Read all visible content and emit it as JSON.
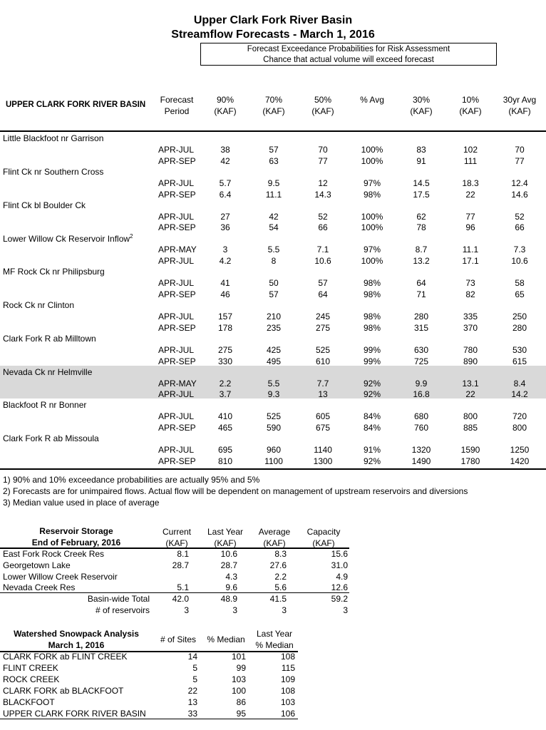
{
  "title": {
    "line1": "Upper Clark Fork River Basin",
    "line2": "Streamflow Forecasts - March 1, 2016"
  },
  "prob_box": {
    "line1": "Forecast Exceedance Probabilities for Risk Assessment",
    "line2": "Chance that actual volume will exceed forecast"
  },
  "forecast_table": {
    "basin_header": "UPPER CLARK FORK RIVER BASIN",
    "columns": [
      {
        "l1": "Forecast",
        "l2": "Period"
      },
      {
        "l1": "90%",
        "l2": "(KAF)"
      },
      {
        "l1": "70%",
        "l2": "(KAF)"
      },
      {
        "l1": "50%",
        "l2": "(KAF)"
      },
      {
        "l1": "% Avg",
        "l2": ""
      },
      {
        "l1": "30%",
        "l2": "(KAF)"
      },
      {
        "l1": "10%",
        "l2": "(KAF)"
      },
      {
        "l1": "30yr Avg",
        "l2": "(KAF)"
      }
    ],
    "sites": [
      {
        "name": "Little Blackfoot nr Garrison",
        "sup": "",
        "shaded": false,
        "rows": [
          [
            "APR-JUL",
            "38",
            "57",
            "70",
            "100%",
            "83",
            "102",
            "70"
          ],
          [
            "APR-SEP",
            "42",
            "63",
            "77",
            "100%",
            "91",
            "111",
            "77"
          ]
        ]
      },
      {
        "name": "Flint Ck nr Southern Cross",
        "sup": "",
        "shaded": false,
        "rows": [
          [
            "APR-JUL",
            "5.7",
            "9.5",
            "12",
            "97%",
            "14.5",
            "18.3",
            "12.4"
          ],
          [
            "APR-SEP",
            "6.4",
            "11.1",
            "14.3",
            "98%",
            "17.5",
            "22",
            "14.6"
          ]
        ]
      },
      {
        "name": "Flint Ck bl Boulder Ck",
        "sup": "",
        "shaded": false,
        "rows": [
          [
            "APR-JUL",
            "27",
            "42",
            "52",
            "100%",
            "62",
            "77",
            "52"
          ],
          [
            "APR-SEP",
            "36",
            "54",
            "66",
            "100%",
            "78",
            "96",
            "66"
          ]
        ]
      },
      {
        "name": "Lower Willow Ck Reservoir Inflow",
        "sup": "2",
        "shaded": false,
        "rows": [
          [
            "APR-MAY",
            "3",
            "5.5",
            "7.1",
            "97%",
            "8.7",
            "11.1",
            "7.3"
          ],
          [
            "APR-JUL",
            "4.2",
            "8",
            "10.6",
            "100%",
            "13.2",
            "17.1",
            "10.6"
          ]
        ]
      },
      {
        "name": "MF Rock Ck nr Philipsburg",
        "sup": "",
        "shaded": false,
        "rows": [
          [
            "APR-JUL",
            "41",
            "50",
            "57",
            "98%",
            "64",
            "73",
            "58"
          ],
          [
            "APR-SEP",
            "46",
            "57",
            "64",
            "98%",
            "71",
            "82",
            "65"
          ]
        ]
      },
      {
        "name": "Rock Ck nr Clinton",
        "sup": "",
        "shaded": false,
        "rows": [
          [
            "APR-JUL",
            "157",
            "210",
            "245",
            "98%",
            "280",
            "335",
            "250"
          ],
          [
            "APR-SEP",
            "178",
            "235",
            "275",
            "98%",
            "315",
            "370",
            "280"
          ]
        ]
      },
      {
        "name": "Clark Fork R ab Milltown",
        "sup": "",
        "shaded": false,
        "rows": [
          [
            "APR-JUL",
            "275",
            "425",
            "525",
            "99%",
            "630",
            "780",
            "530"
          ],
          [
            "APR-SEP",
            "330",
            "495",
            "610",
            "99%",
            "725",
            "890",
            "615"
          ]
        ]
      },
      {
        "name": "Nevada Ck nr Helmville",
        "sup": "",
        "shaded": true,
        "rows": [
          [
            "APR-MAY",
            "2.2",
            "5.5",
            "7.7",
            "92%",
            "9.9",
            "13.1",
            "8.4"
          ],
          [
            "APR-JUL",
            "3.7",
            "9.3",
            "13",
            "92%",
            "16.8",
            "22",
            "14.2"
          ]
        ]
      },
      {
        "name": "Blackfoot R nr Bonner",
        "sup": "",
        "shaded": false,
        "rows": [
          [
            "APR-JUL",
            "410",
            "525",
            "605",
            "84%",
            "680",
            "800",
            "720"
          ],
          [
            "APR-SEP",
            "465",
            "590",
            "675",
            "84%",
            "760",
            "885",
            "800"
          ]
        ]
      },
      {
        "name": "Clark Fork R ab Missoula",
        "sup": "",
        "shaded": false,
        "rows": [
          [
            "APR-JUL",
            "695",
            "960",
            "1140",
            "91%",
            "1320",
            "1590",
            "1250"
          ],
          [
            "APR-SEP",
            "810",
            "1100",
            "1300",
            "92%",
            "1490",
            "1780",
            "1420"
          ]
        ]
      }
    ]
  },
  "notes": [
    "1) 90% and 10% exceedance probabilities are actually 95% and 5%",
    "2) Forecasts are for unimpaired flows.  Actual flow will be dependent on management of upstream reservoirs and diversions",
    "3) Median value used in place of average"
  ],
  "reservoir": {
    "title1": "Reservoir Storage",
    "title2": "End of February, 2016",
    "headers": [
      {
        "l1": "Current",
        "l2": "(KAF)"
      },
      {
        "l1": "Last Year",
        "l2": "(KAF)"
      },
      {
        "l1": "Average",
        "l2": "(KAF)"
      },
      {
        "l1": "Capacity",
        "l2": "(KAF)"
      }
    ],
    "rows": [
      {
        "name": "East Fork Rock Creek Res",
        "vals": [
          "8.1",
          "10.6",
          "8.3",
          "15.6"
        ]
      },
      {
        "name": "Georgetown Lake",
        "vals": [
          "28.7",
          "28.7",
          "27.6",
          "31.0"
        ]
      },
      {
        "name": "Lower Willow Creek Reservoir",
        "vals": [
          "",
          "4.3",
          "2.2",
          "4.9"
        ]
      },
      {
        "name": "Nevada Creek Res",
        "vals": [
          "5.1",
          "9.6",
          "5.6",
          "12.6"
        ]
      }
    ],
    "totals": [
      {
        "label": "Basin-wide Total",
        "vals": [
          "42.0",
          "48.9",
          "41.5",
          "59.2"
        ]
      },
      {
        "label": "# of reservoirs",
        "vals": [
          "3",
          "3",
          "3",
          "3"
        ]
      }
    ]
  },
  "snowpack": {
    "title1": "Watershed Snowpack Analysis",
    "title2": "March 1, 2016",
    "headers": [
      {
        "l1": "# of Sites",
        "l2": ""
      },
      {
        "l1": "% Median",
        "l2": ""
      },
      {
        "l1": "Last Year",
        "l2": "% Median"
      }
    ],
    "rows": [
      {
        "name": "CLARK FORK ab FLINT CREEK",
        "vals": [
          "14",
          "101",
          "108"
        ]
      },
      {
        "name": "FLINT CREEK",
        "vals": [
          "5",
          "99",
          "115"
        ]
      },
      {
        "name": "ROCK CREEK",
        "vals": [
          "5",
          "103",
          "109"
        ]
      },
      {
        "name": "CLARK FORK ab BLACKFOOT",
        "vals": [
          "22",
          "100",
          "108"
        ]
      },
      {
        "name": "BLACKFOOT",
        "vals": [
          "13",
          "86",
          "103"
        ]
      },
      {
        "name": "UPPER CLARK FORK RIVER BASIN",
        "vals": [
          "33",
          "95",
          "106"
        ]
      }
    ]
  }
}
